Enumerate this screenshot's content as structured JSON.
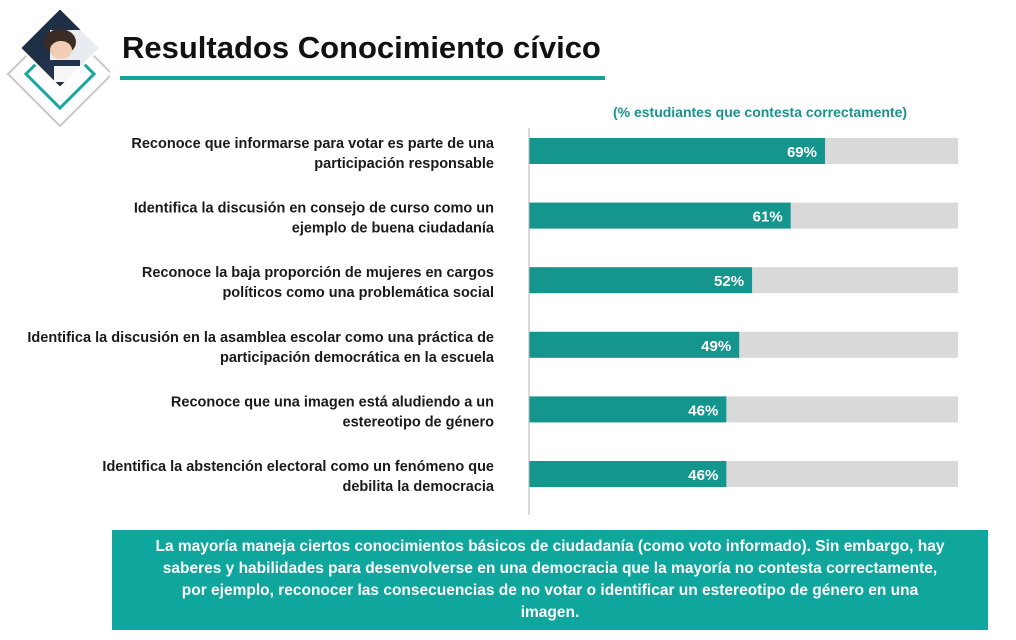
{
  "header": {
    "title": "Resultados Conocimiento cívico",
    "subtitle": "(% estudiantes que contesta correctamente)"
  },
  "chart_data": {
    "type": "bar",
    "orientation": "horizontal",
    "categories": [
      [
        "Reconoce que informarse para votar es parte de una",
        "participación responsable"
      ],
      [
        "Identifica la discusión en consejo de curso como un",
        "ejemplo de buena ciudadanía"
      ],
      [
        "Reconoce la baja proporción de mujeres en cargos",
        "políticos como una problemática social"
      ],
      [
        "Identifica la discusión en la asamblea escolar como una práctica de",
        "participación democrática en la escuela"
      ],
      [
        "Reconoce que una imagen está aludiendo a un",
        "estereotipo de género"
      ],
      [
        "Identifica la abstención electoral como un fenómeno que",
        "debilita la democracia"
      ]
    ],
    "values": [
      69,
      61,
      52,
      49,
      46,
      46
    ],
    "data_labels": [
      "69%",
      "61%",
      "52%",
      "49%",
      "46%",
      "46%"
    ],
    "xlim": [
      0,
      100
    ],
    "colors": {
      "bar": "#14968f",
      "track": "#d9d9d9",
      "axis": "#b3b3b3"
    },
    "grid": false,
    "legend": "none"
  },
  "callout": {
    "text": "La mayoría maneja ciertos conocimientos básicos de ciudadanía (como voto informado).  Sin embargo, hay saberes y habilidades para desenvolverse en una democracia que la mayoría no contesta correctamente, por ejemplo, reconocer las consecuencias de no votar o identificar un estereotipo de género en una imagen."
  },
  "decor": {
    "logo_icon": "student-writing-photo-diamond-icon",
    "accent_color": "#0fa69e"
  }
}
